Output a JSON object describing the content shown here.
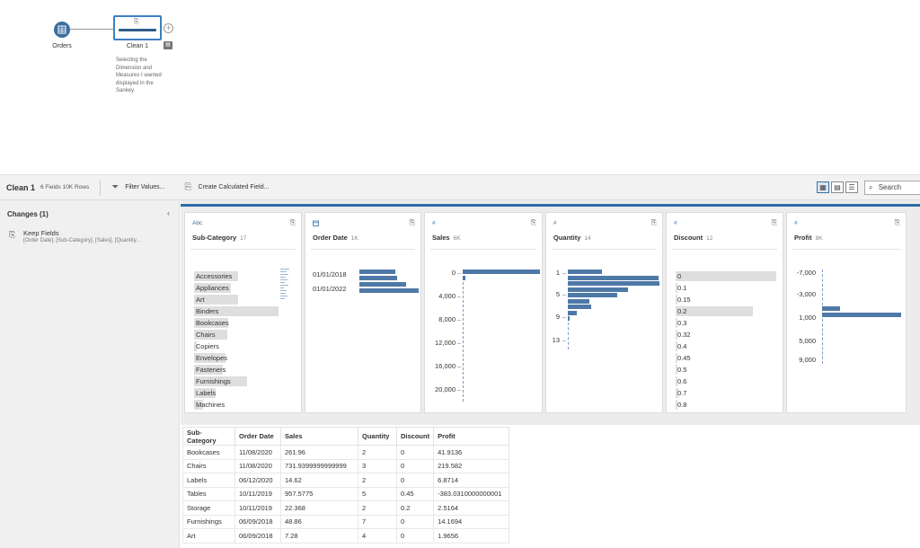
{
  "flow": {
    "orders_label": "Orders",
    "clean_label": "Clean 1",
    "note": "Selecting the Dimension and Measures I wanted displayed in the Sankey."
  },
  "toolbar": {
    "title": "Clean 1",
    "meta": "6 Fields  10K Rows",
    "filter_label": "Filter Values...",
    "calc_label": "Create Calculated Field...",
    "search_placeholder": "Search"
  },
  "changes": {
    "title": "Changes (1)",
    "item_name": "Keep Fields",
    "item_detail": "[Order Date], [Sub-Category], [Sales], [Quantity..."
  },
  "profile": {
    "cards": [
      {
        "type": "Abc",
        "name": "Sub-Category",
        "count": "17"
      },
      {
        "type": "calendar-icon",
        "name": "Order Date",
        "count": "1K"
      },
      {
        "type": "#",
        "name": "Sales",
        "count": "6K"
      },
      {
        "type": "#",
        "name": "Quantity",
        "count": "14"
      },
      {
        "type": "#",
        "name": "Discount",
        "count": "12"
      },
      {
        "type": "#",
        "name": "Profit",
        "count": "8K"
      }
    ],
    "subcategory": {
      "items": [
        "Accessories",
        "Appliances",
        "Art",
        "Binders",
        "Bookcases",
        "Chairs",
        "Copiers",
        "Envelopes",
        "Fasteners",
        "Furnishings",
        "Labels",
        "Machines"
      ],
      "fill": [
        0.52,
        0.44,
        0.52,
        1.0,
        0.4,
        0.39,
        0.03,
        0.37,
        0.34,
        0.63,
        0.25,
        0.11
      ]
    },
    "order_date": {
      "labels": [
        "01/01/2018",
        "01/01/2022"
      ],
      "bars": [
        0.6,
        0.62,
        0.77,
        0.99
      ]
    },
    "sales": {
      "labels": [
        "0",
        "4,000",
        "8,000",
        "12,000",
        "16,000",
        "20,000"
      ],
      "bars": [
        1.0,
        0.03
      ]
    },
    "quantity": {
      "labels": [
        "1",
        "5",
        "9",
        "13"
      ],
      "bars": [
        0.37,
        0.99,
        1.0,
        0.66,
        0.54,
        0.24,
        0.25,
        0.1,
        0.02
      ]
    },
    "discount": {
      "labels": [
        "0",
        "0.1",
        "0.15",
        "0.2",
        "0.3",
        "0.32",
        "0.4",
        "0.45",
        "0.5",
        "0.6",
        "0.7",
        "0.8"
      ],
      "fill": [
        1.0,
        0.01,
        0.01,
        0.77,
        0.02,
        0.0,
        0.02,
        0.0,
        0.0,
        0.01,
        0.03,
        0.02
      ]
    },
    "profit": {
      "labels": [
        "-7,000",
        "-3,000",
        "1,000",
        "5,000",
        "9,000"
      ],
      "bars": [
        0.23,
        1.0
      ]
    }
  },
  "grid": {
    "columns": [
      "Sub-Category",
      "Order Date",
      "Sales",
      "Quantity",
      "Discount",
      "Profit"
    ],
    "rows": [
      [
        "Bookcases",
        "11/08/2020",
        "261.96",
        "2",
        "0",
        "41.9136"
      ],
      [
        "Chairs",
        "11/08/2020",
        "731.9399999999999",
        "3",
        "0",
        "219.582"
      ],
      [
        "Labels",
        "06/12/2020",
        "14.62",
        "2",
        "0",
        "6.8714"
      ],
      [
        "Tables",
        "10/11/2019",
        "957.5775",
        "5",
        "0.45",
        "-383.0310000000001"
      ],
      [
        "Storage",
        "10/11/2019",
        "22.368",
        "2",
        "0.2",
        "2.5164"
      ],
      [
        "Furnishings",
        "06/09/2018",
        "48.86",
        "7",
        "0",
        "14.1694"
      ],
      [
        "Art",
        "06/09/2018",
        "7.28",
        "4",
        "0",
        "1.9656"
      ]
    ]
  }
}
